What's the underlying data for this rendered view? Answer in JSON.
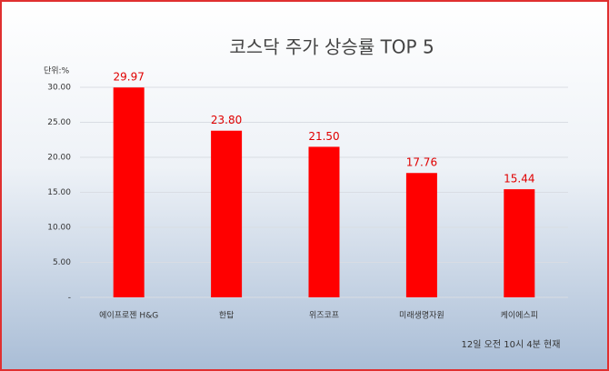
{
  "chart_data": {
    "type": "bar",
    "title": "코스닥 주가 상승률 TOP 5",
    "unit_label": "단위:%",
    "categories": [
      "에이프로젠 H&G",
      "한탑",
      "위즈코프",
      "미래생명자원",
      "케이에스피"
    ],
    "values": [
      29.97,
      23.8,
      21.5,
      17.76,
      15.44
    ],
    "value_labels": [
      "29.97",
      "23.80",
      "21.50",
      "17.76",
      "15.44"
    ],
    "color": "#ff0000",
    "ylim": [
      0,
      30
    ],
    "yticks": [
      {
        "value": 0,
        "label": "-"
      },
      {
        "value": 5,
        "label": "5.00"
      },
      {
        "value": 10,
        "label": "10.00"
      },
      {
        "value": 15,
        "label": "15.00"
      },
      {
        "value": 20,
        "label": "20.00"
      },
      {
        "value": 25,
        "label": "25.00"
      },
      {
        "value": 30,
        "label": "30.00"
      }
    ],
    "grid": true,
    "footnote": "12일 오전 10시 4분 현재"
  }
}
